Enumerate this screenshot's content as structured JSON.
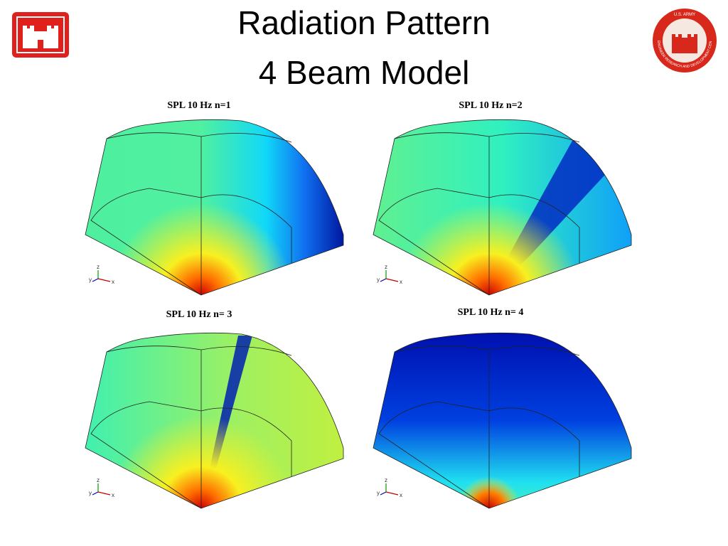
{
  "header": {
    "title_lines": [
      "Radiation Pattern",
      "4 Beam Model"
    ],
    "seal_text": [
      "U.S. ARMY",
      "ENGINEER RESEARCH AND DEVELOPMENT CENTER"
    ]
  },
  "panels": [
    {
      "label": "SPL 10 Hz n=1"
    },
    {
      "label": "SPL 10 Hz n=2"
    },
    {
      "label": "SPL 10 Hz n= 3"
    },
    {
      "label": "SPL 10 Hz n= 4"
    }
  ],
  "axis_triad": {
    "x": "x",
    "y": "y",
    "z": "z"
  }
}
